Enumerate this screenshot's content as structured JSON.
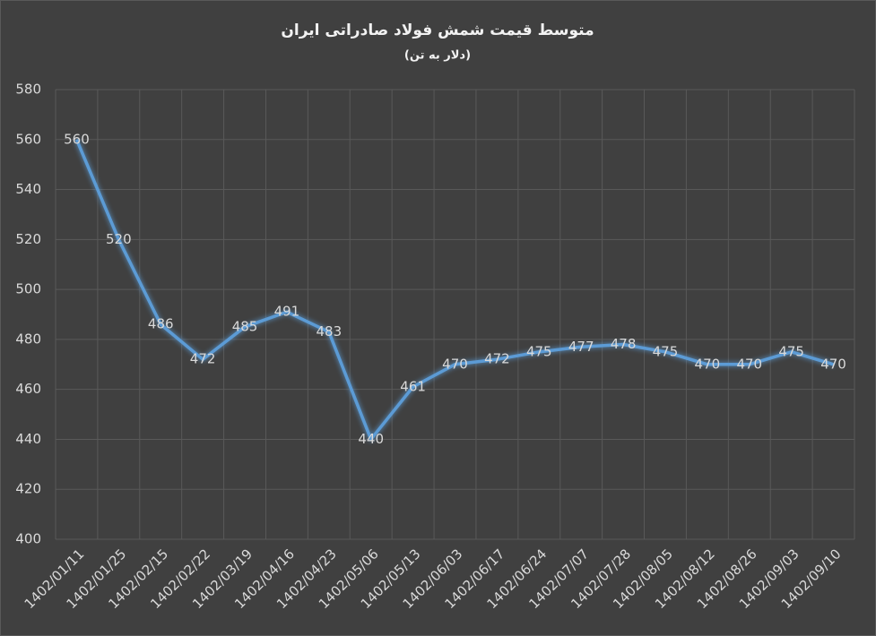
{
  "chart_data": {
    "type": "line",
    "title": "متوسط قیمت شمش فولاد صادراتی ایران",
    "subtitle": "(دلار به تن)",
    "categories": [
      "1402/01/11",
      "1402/01/25",
      "1402/02/15",
      "1402/02/22",
      "1402/03/19",
      "1402/04/16",
      "1402/04/23",
      "1402/05/06",
      "1402/05/13",
      "1402/06/03",
      "1402/06/17",
      "1402/06/24",
      "1402/07/07",
      "1402/07/28",
      "1402/08/05",
      "1402/08/12",
      "1402/08/26",
      "1402/09/03",
      "1402/09/10"
    ],
    "values": [
      560,
      520,
      486,
      472,
      485,
      491,
      483,
      440,
      461,
      470,
      472,
      475,
      477,
      478,
      475,
      470,
      470,
      475,
      470
    ],
    "color": "#5b9bd5",
    "ylim": [
      400,
      580
    ],
    "yticks": [
      400,
      420,
      440,
      460,
      480,
      500,
      520,
      540,
      560,
      580
    ],
    "grid": true
  }
}
